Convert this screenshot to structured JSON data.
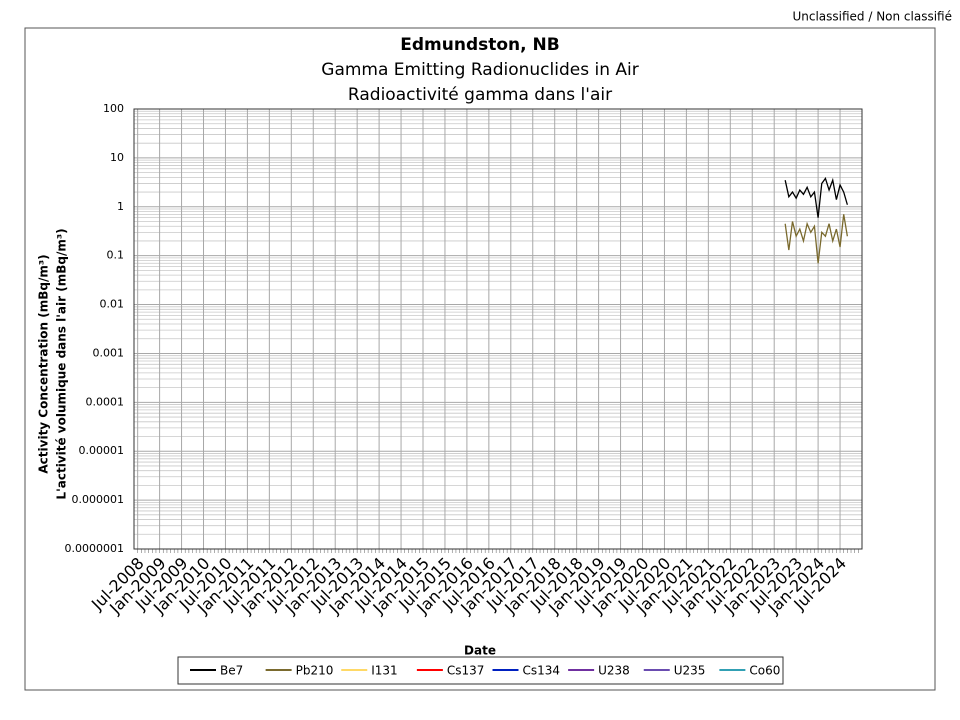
{
  "header": "Unclassified / Non classifié",
  "chart_data": {
    "type": "line",
    "title": "Edmundston, NB",
    "subtitle": "Gamma Emitting Radionuclides in Air",
    "subtitle_fr": "Radioactivité gamma dans l'air",
    "x_label": "Date",
    "y_label": "Activity Concentration  (mBq/m³)",
    "y_label_fr": "L'activité volumique dans l'air (mBq/m³)",
    "log_y": true,
    "grid": true,
    "legend": "bottom",
    "x": [
      "2023-04",
      "2023-05",
      "2023-06",
      "2023-07",
      "2023-08",
      "2023-09",
      "2023-10",
      "2023-11",
      "2023-12",
      "2024-01",
      "2024-02",
      "2024-03",
      "2024-04",
      "2024-05",
      "2024-06",
      "2024-07",
      "2024-08",
      "2024-09"
    ],
    "xlim": [
      "2008-06",
      "2025-01"
    ],
    "xticks": [
      {
        "value": "2008-07",
        "label": "Jul-2008"
      },
      {
        "value": "2009-01",
        "label": "Jan-2009"
      },
      {
        "value": "2009-07",
        "label": "Jul-2009"
      },
      {
        "value": "2010-01",
        "label": "Jan-2010"
      },
      {
        "value": "2010-07",
        "label": "Jul-2010"
      },
      {
        "value": "2011-01",
        "label": "Jan-2011"
      },
      {
        "value": "2011-07",
        "label": "Jul-2011"
      },
      {
        "value": "2012-01",
        "label": "Jan-2012"
      },
      {
        "value": "2012-07",
        "label": "Jul-2012"
      },
      {
        "value": "2013-01",
        "label": "Jan-2013"
      },
      {
        "value": "2013-07",
        "label": "Jul-2013"
      },
      {
        "value": "2014-01",
        "label": "Jan-2014"
      },
      {
        "value": "2014-07",
        "label": "Jul-2014"
      },
      {
        "value": "2015-01",
        "label": "Jan-2015"
      },
      {
        "value": "2015-07",
        "label": "Jul-2015"
      },
      {
        "value": "2016-01",
        "label": "Jan-2016"
      },
      {
        "value": "2016-07",
        "label": "Jul-2016"
      },
      {
        "value": "2017-01",
        "label": "Jan-2017"
      },
      {
        "value": "2017-07",
        "label": "Jul-2017"
      },
      {
        "value": "2018-01",
        "label": "Jan-2018"
      },
      {
        "value": "2018-07",
        "label": "Jul-2018"
      },
      {
        "value": "2019-01",
        "label": "Jan-2019"
      },
      {
        "value": "2019-07",
        "label": "Jul-2019"
      },
      {
        "value": "2020-01",
        "label": "Jan-2020"
      },
      {
        "value": "2020-07",
        "label": "Jul-2020"
      },
      {
        "value": "2021-01",
        "label": "Jan-2021"
      },
      {
        "value": "2021-07",
        "label": "Jul-2021"
      },
      {
        "value": "2022-01",
        "label": "Jan-2022"
      },
      {
        "value": "2022-07",
        "label": "Jul-2022"
      },
      {
        "value": "2023-01",
        "label": "Jan-2023"
      },
      {
        "value": "2023-07",
        "label": "Jul-2023"
      },
      {
        "value": "2024-01",
        "label": "Jan-2024"
      },
      {
        "value": "2024-07",
        "label": "Jul-2024"
      }
    ],
    "ylim": [
      1e-07,
      100
    ],
    "yticks": [
      {
        "value": 1e-07,
        "label": "0.0000001"
      },
      1e-06,
      1e-05,
      0.0001,
      0.001,
      0.01,
      0.1,
      1,
      10,
      100
    ],
    "series": [
      {
        "name": "Be7",
        "color": "#000000",
        "values": [
          3.5,
          1.6,
          2.0,
          1.5,
          2.2,
          1.8,
          2.5,
          1.6,
          2.0,
          0.6,
          3.0,
          3.8,
          2.2,
          3.5,
          1.4,
          2.8,
          2.0,
          1.1
        ]
      },
      {
        "name": "Pb210",
        "color": "#7a6a2e",
        "values": [
          0.45,
          0.13,
          0.5,
          0.25,
          0.35,
          0.2,
          0.45,
          0.3,
          0.4,
          0.07,
          0.3,
          0.25,
          0.45,
          0.2,
          0.35,
          0.15,
          0.7,
          0.25
        ]
      },
      {
        "name": "I131",
        "color": "#ffd966",
        "values": [
          null,
          null,
          null,
          null,
          null,
          null,
          null,
          null,
          null,
          null,
          null,
          null,
          null,
          null,
          null,
          null,
          null,
          null
        ]
      },
      {
        "name": "Cs137",
        "color": "#ff0000",
        "values": [
          null,
          null,
          null,
          null,
          null,
          null,
          null,
          null,
          null,
          null,
          null,
          null,
          null,
          null,
          null,
          null,
          null,
          null
        ]
      },
      {
        "name": "Cs134",
        "color": "#0020c0",
        "values": [
          null,
          null,
          null,
          null,
          null,
          null,
          null,
          null,
          null,
          null,
          null,
          null,
          null,
          null,
          null,
          null,
          null,
          null
        ]
      },
      {
        "name": "U238",
        "color": "#7030a0",
        "values": [
          null,
          null,
          null,
          null,
          null,
          null,
          null,
          null,
          null,
          null,
          null,
          null,
          null,
          null,
          null,
          null,
          null,
          null
        ]
      },
      {
        "name": "U235",
        "color": "#6a4cb0",
        "values": [
          null,
          null,
          null,
          null,
          null,
          null,
          null,
          null,
          null,
          null,
          null,
          null,
          null,
          null,
          null,
          null,
          null,
          null
        ]
      },
      {
        "name": "Co60",
        "color": "#31a0b4",
        "values": [
          null,
          null,
          null,
          null,
          null,
          null,
          null,
          null,
          null,
          null,
          null,
          null,
          null,
          null,
          null,
          null,
          null,
          null
        ]
      }
    ]
  }
}
